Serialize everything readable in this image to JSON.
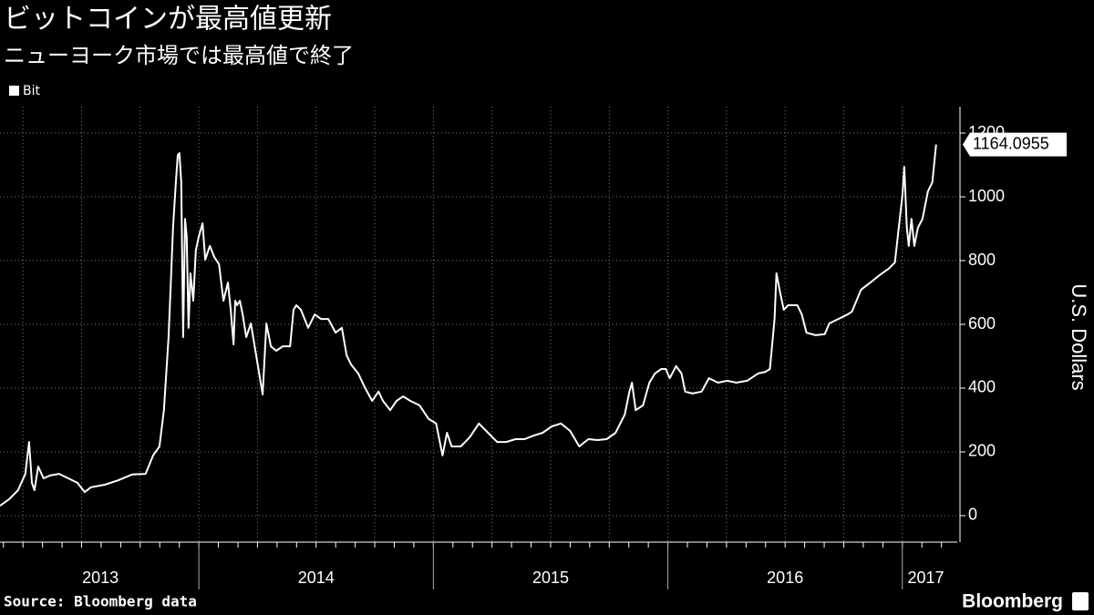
{
  "chart_data": {
    "type": "line",
    "title": "ビットコインが最高値更新",
    "subtitle": "ニューヨーク市場では最高値で終了",
    "y_label": "U.S. Dollars",
    "source": "Source: Bloomberg data",
    "brand": "Bloomberg",
    "grid": true,
    "x": [
      2013.152,
      2013.19,
      2013.229,
      2013.26,
      2013.276,
      2013.288,
      2013.299,
      2013.315,
      2013.338,
      2013.365,
      2013.404,
      2013.443,
      2013.482,
      2013.513,
      2013.54,
      2013.599,
      2013.657,
      2013.715,
      2013.773,
      2013.805,
      2013.832,
      2013.851,
      2013.871,
      2013.882,
      2013.89,
      2013.902,
      2013.91,
      2013.917,
      2013.925,
      2013.933,
      2013.941,
      2013.948,
      2013.956,
      2013.964,
      2013.976,
      2013.987,
      2013.999,
      2014.016,
      2014.027,
      2014.047,
      2014.066,
      2014.086,
      2014.105,
      2014.124,
      2014.136,
      2014.148,
      2014.155,
      2014.163,
      2014.175,
      2014.187,
      2014.202,
      2014.222,
      2014.272,
      2014.288,
      2014.307,
      2014.33,
      2014.358,
      2014.389,
      2014.404,
      2014.416,
      2014.435,
      2014.466,
      2014.494,
      2014.521,
      2014.552,
      2014.583,
      2014.61,
      2014.63,
      2014.649,
      2014.68,
      2014.707,
      2014.739,
      2014.766,
      2014.785,
      2014.816,
      2014.843,
      2014.871,
      2014.902,
      2014.941,
      2014.98,
      2015.012,
      2015.039,
      2015.058,
      2015.078,
      2015.117,
      2015.155,
      2015.194,
      2015.233,
      2015.272,
      2015.311,
      2015.35,
      2015.389,
      2015.428,
      2015.466,
      2015.505,
      2015.544,
      2015.583,
      2015.622,
      2015.661,
      2015.7,
      2015.739,
      2015.777,
      2015.816,
      2015.836,
      2015.847,
      2015.863,
      2015.894,
      2015.921,
      2015.945,
      2015.972,
      2015.991,
      2016.008,
      2016.035,
      2016.058,
      2016.074,
      2016.105,
      2016.144,
      2016.175,
      2016.214,
      2016.253,
      2016.292,
      2016.338,
      2016.385,
      2016.416,
      2016.435,
      2016.455,
      2016.463,
      2016.478,
      2016.494,
      2016.513,
      2016.552,
      2016.571,
      2016.591,
      2016.63,
      2016.669,
      2016.688,
      2016.727,
      2016.766,
      2016.785,
      2016.824,
      2016.863,
      2016.902,
      2016.941,
      2016.968,
      2016.98,
      2017.0,
      2017.008,
      2017.019,
      2017.027,
      2017.039,
      2017.051,
      2017.066,
      2017.086,
      2017.109,
      2017.128,
      2017.144
    ],
    "series": [
      {
        "name": "Bit",
        "color": "#ffffff",
        "values": [
          31,
          51,
          80,
          131,
          231,
          103,
          80,
          154,
          117,
          126,
          131,
          117,
          103,
          74,
          89,
          97,
          111,
          129,
          131,
          189,
          217,
          331,
          560,
          760,
          903,
          1046,
          1131,
          1137,
          1046,
          560,
          931,
          874,
          589,
          760,
          674,
          831,
          874,
          917,
          803,
          846,
          811,
          789,
          674,
          731,
          646,
          537,
          674,
          660,
          674,
          631,
          560,
          603,
          380,
          603,
          531,
          517,
          531,
          531,
          646,
          660,
          646,
          589,
          631,
          617,
          617,
          574,
          589,
          503,
          474,
          446,
          403,
          360,
          389,
          360,
          331,
          360,
          374,
          360,
          346,
          303,
          289,
          189,
          260,
          217,
          217,
          246,
          289,
          260,
          231,
          231,
          240,
          240,
          251,
          260,
          280,
          289,
          266,
          217,
          240,
          237,
          240,
          260,
          317,
          389,
          417,
          331,
          346,
          417,
          446,
          460,
          460,
          431,
          469,
          446,
          389,
          383,
          389,
          431,
          417,
          423,
          417,
          423,
          446,
          451,
          460,
          617,
          760,
          703,
          646,
          660,
          660,
          631,
          574,
          566,
          569,
          603,
          617,
          631,
          640,
          709,
          731,
          754,
          774,
          794,
          874,
          1003,
          1094,
          903,
          846,
          931,
          846,
          903,
          931,
          1017,
          1046,
          1164.0955
        ]
      }
    ],
    "xlim": [
      2013.152,
      2017.234
    ],
    "xticks": [
      {
        "value": 2013.58,
        "label": "2013"
      },
      {
        "value": 2014.5,
        "label": "2014"
      },
      {
        "value": 2015.5,
        "label": "2015"
      },
      {
        "value": 2016.5,
        "label": "2016"
      },
      {
        "value": 2017.1,
        "label": "2017"
      }
    ],
    "ylim": [
      -83,
      1283
    ],
    "yticks": [
      0,
      200,
      400,
      600,
      800,
      1000,
      1200
    ]
  }
}
